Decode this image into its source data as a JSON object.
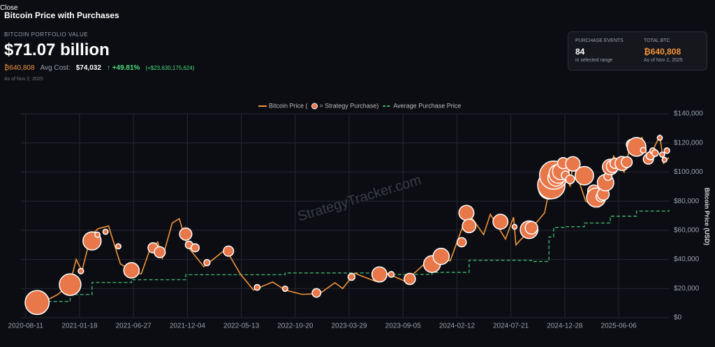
{
  "header": {
    "close": "Close",
    "title": "Bitcoin Price with Purchases",
    "portfolio_label": "BITCOIN PORTFOLIO VALUE",
    "portfolio_value": "$71.07 billion",
    "btc": "₿640,808",
    "avg_cost_label": "Avg Cost:",
    "avg_cost": "$74,032",
    "gain_pct": "↑ +49.81%",
    "gain_usd": "(+$23,630,175,624)",
    "as_of": "As of Nov 2, 2025"
  },
  "stats": {
    "events_label": "PURCHASE EVENTS",
    "events": "84",
    "events_note": "in selected range",
    "total_label": "TOTAL BTC",
    "total": "₿640,808",
    "total_note": "As of Nov 2, 2025"
  },
  "watermark": "StrategyTracker.com",
  "chart_data": {
    "type": "line",
    "y_label": "Bitcoin Price (USD)",
    "grid": true,
    "xlim": [
      "2020-07-28",
      "2025-11-02"
    ],
    "xticks": [
      "2020-08-11",
      "2021-01-18",
      "2021-06-27",
      "2021-12-04",
      "2022-05-13",
      "2022-10-20",
      "2023-03-29",
      "2023-09-05",
      "2024-02-12",
      "2024-07-21",
      "2024-12-28",
      "2025-06-06"
    ],
    "ylim": [
      0,
      140000
    ],
    "yticks": [
      {
        "value": 0,
        "label": "$0"
      },
      {
        "value": 20000,
        "label": "$20,000"
      },
      {
        "value": 40000,
        "label": "$40,000"
      },
      {
        "value": 60000,
        "label": "$60,000"
      },
      {
        "value": 80000,
        "label": "$80,000"
      },
      {
        "value": 100000,
        "label": "$100,000"
      },
      {
        "value": 120000,
        "label": "$120,000"
      },
      {
        "value": 140000,
        "label": "$140,000"
      }
    ],
    "series": [
      {
        "name": "Bitcoin Price (",
        "color": "#f0943a",
        "x": [
          "2020-08-11",
          "2020-10-01",
          "2020-11-15",
          "2020-12-20",
          "2021-01-08",
          "2021-01-25",
          "2021-02-20",
          "2021-03-13",
          "2021-04-14",
          "2021-05-19",
          "2021-06-22",
          "2021-07-20",
          "2021-08-15",
          "2021-09-07",
          "2021-09-21",
          "2021-10-20",
          "2021-11-10",
          "2021-12-04",
          "2022-01-22",
          "2022-03-28",
          "2022-05-10",
          "2022-06-18",
          "2022-08-14",
          "2022-09-20",
          "2022-11-09",
          "2022-12-31",
          "2023-02-15",
          "2023-03-10",
          "2023-04-14",
          "2023-06-15",
          "2023-07-14",
          "2023-09-11",
          "2023-10-25",
          "2023-12-08",
          "2024-01-23",
          "2024-02-28",
          "2024-03-14",
          "2024-05-01",
          "2024-05-21",
          "2024-07-05",
          "2024-07-29",
          "2024-08-05",
          "2024-09-30",
          "2024-10-29",
          "2024-11-22",
          "2024-12-17",
          "2025-01-13",
          "2025-01-21",
          "2025-02-28",
          "2025-04-08",
          "2025-05-22",
          "2025-06-22",
          "2025-07-14",
          "2025-08-02",
          "2025-08-14",
          "2025-09-01",
          "2025-10-06",
          "2025-10-17",
          "2025-11-02"
        ],
        "values": [
          11500,
          10600,
          16000,
          23000,
          40000,
          32000,
          56000,
          61000,
          63000,
          37000,
          32000,
          30000,
          47000,
          52000,
          41000,
          65000,
          68000,
          49000,
          35000,
          47000,
          30000,
          19000,
          24500,
          19000,
          16000,
          16500,
          24000,
          20000,
          30500,
          25000,
          31000,
          25000,
          34000,
          44000,
          39000,
          62000,
          73000,
          57000,
          71000,
          54000,
          69000,
          50000,
          64000,
          72000,
          99000,
          107000,
          90000,
          106000,
          80000,
          76000,
          111000,
          100000,
          122000,
          113000,
          124000,
          108000,
          125000,
          106000,
          110000
        ]
      },
      {
        "name": "= Strategy Purchase)",
        "type": "scatter",
        "color": "#e8774a",
        "x": [
          "2020-09-14",
          "2020-12-21",
          "2021-01-22",
          "2021-02-24",
          "2021-03-12",
          "2021-04-05",
          "2021-05-13",
          "2021-06-21",
          "2021-08-24",
          "2021-09-13",
          "2021-11-29",
          "2021-12-09",
          "2021-12-27",
          "2022-01-31",
          "2022-04-05",
          "2022-06-29",
          "2022-09-20",
          "2022-12-22",
          "2023-04-05",
          "2023-06-27",
          "2023-08-01",
          "2023-09-25",
          "2023-11-30",
          "2023-12-27",
          "2024-02-26",
          "2024-03-11",
          "2024-03-19",
          "2024-06-20",
          "2024-08-01",
          "2024-09-13",
          "2024-09-20",
          "2024-11-11",
          "2024-11-18",
          "2024-11-25",
          "2024-12-02",
          "2024-12-09",
          "2024-12-16",
          "2024-12-23",
          "2024-12-30",
          "2025-01-13",
          "2025-01-21",
          "2025-02-24",
          "2025-03-17",
          "2025-03-24",
          "2025-03-31",
          "2025-04-14",
          "2025-04-21",
          "2025-04-28",
          "2025-05-05",
          "2025-05-12",
          "2025-05-19",
          "2025-05-26",
          "2025-06-16",
          "2025-06-23",
          "2025-06-30",
          "2025-07-14",
          "2025-07-29",
          "2025-08-18",
          "2025-09-02",
          "2025-09-08",
          "2025-09-15",
          "2025-09-22",
          "2025-10-06",
          "2025-10-13",
          "2025-10-20",
          "2025-10-27"
        ],
        "values": [
          10400,
          22700,
          32000,
          52700,
          57000,
          59000,
          49000,
          32500,
          48000,
          45000,
          57400,
          50000,
          48000,
          37800,
          45700,
          20800,
          19900,
          17000,
          28000,
          29700,
          29700,
          26600,
          36800,
          42100,
          51800,
          72000,
          63000,
          65900,
          62400,
          60400,
          61700,
          88600,
          91000,
          97900,
          96000,
          98800,
          100400,
          106100,
          97800,
          95000,
          105600,
          97500,
          84000,
          86900,
          82500,
          83000,
          84800,
          92700,
          97000,
          103500,
          104000,
          106000,
          105900,
          105800,
          106800,
          118900,
          117300,
          115000,
          108900,
          111200,
          114600,
          113000,
          123500,
          112000,
          108400,
          114700
        ],
        "sizes": [
          38250,
          29646,
          314,
          19452,
          262,
          253,
          271,
          13005,
          3907,
          5050,
          7002,
          1434,
          1914,
          660,
          4167,
          480,
          301,
          2395,
          1045,
          12333,
          467,
          5445,
          16130,
          14620,
          3000,
          12000,
          9245,
          11931,
          169,
          18300,
          7420,
          27200,
          51780,
          55500,
          15400,
          21550,
          15350,
          5262,
          2138,
          2530,
          11000,
          20356,
          130,
          6911,
          22048,
          3459,
          6556,
          15355,
          1895,
          13390,
          7390,
          4020,
          10100,
          245,
          4980,
          4225,
          21021,
          430,
          4048,
          1955,
          525,
          850,
          196,
          220,
          168,
          390
        ]
      },
      {
        "name": "Average Purchase Price",
        "type": "step",
        "color": "#3fae6a",
        "x": [
          "2020-08-11",
          "2020-12-21",
          "2021-02-24",
          "2021-06-21",
          "2021-11-29",
          "2022-09-20",
          "2023-06-27",
          "2023-11-30",
          "2024-03-19",
          "2024-09-20",
          "2024-11-11",
          "2024-11-25",
          "2024-12-30",
          "2025-02-24",
          "2025-05-12",
          "2025-07-29",
          "2025-11-02"
        ],
        "values": [
          11100,
          15900,
          24200,
          26100,
          29500,
          30700,
          29700,
          31100,
          39400,
          38600,
          55400,
          62000,
          62500,
          65000,
          69700,
          73200,
          74032
        ]
      }
    ]
  }
}
